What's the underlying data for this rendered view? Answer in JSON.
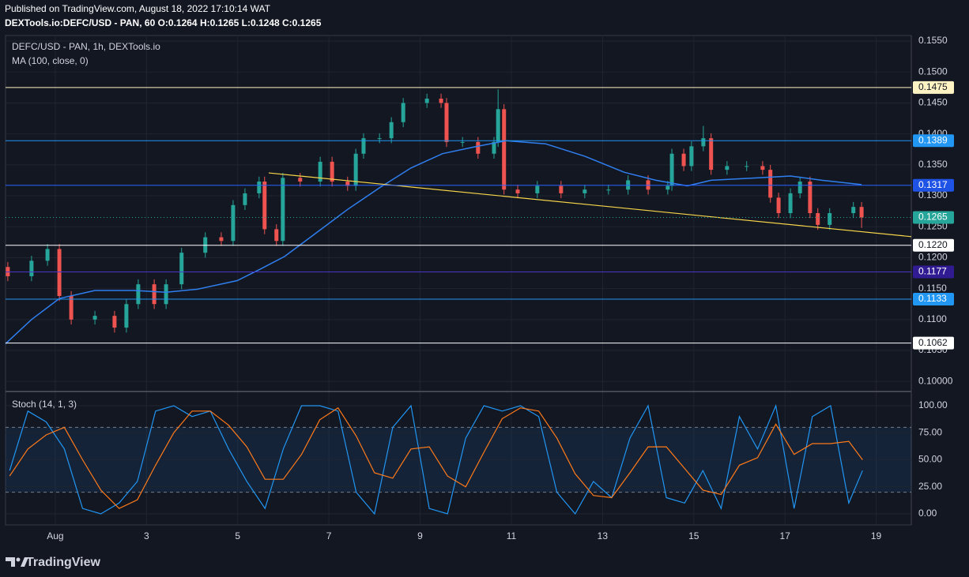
{
  "header": {
    "published": "Published on TradingView.com, August 18, 2022 17:10:14 WAT",
    "symbol": "DEXTools.io:DEFC/USD - PAN, 60 O:0.1264 H:0.1265 L:0.1248 C:0.1265"
  },
  "footer": {
    "brand": "TradingView"
  },
  "chart_data": [
    {
      "type": "candlestick",
      "title": "DEFC/USD - PAN, 1h, DEXTools.io",
      "up_color": "#26a69a",
      "down_color": "#ef5350",
      "grid": true,
      "xlim": [
        -0.09,
        19.77
      ],
      "ylim": [
        0.0985,
        0.1559
      ],
      "xticks": [
        {
          "value": 1,
          "label": "Aug"
        },
        3,
        5,
        7,
        9,
        11,
        13,
        15,
        17,
        19
      ],
      "yticks": [
        {
          "value": 0.155,
          "label": "0.1550"
        },
        {
          "value": 0.15,
          "label": "0.1500"
        },
        {
          "value": 0.145,
          "label": "0.1450"
        },
        {
          "value": 0.14,
          "label": "0.1400"
        },
        {
          "value": 0.135,
          "label": "0.1350"
        },
        {
          "value": 0.13,
          "label": "0.1300"
        },
        {
          "value": 0.125,
          "label": "0.1250"
        },
        {
          "value": 0.12,
          "label": "0.1200"
        },
        {
          "value": 0.115,
          "label": "0.1150"
        },
        {
          "value": 0.11,
          "label": "0.1100"
        },
        {
          "value": 0.105,
          "label": "0.1050"
        },
        {
          "value": 0.1,
          "label": "0.10000"
        }
      ],
      "x": [
        -0.04,
        0.48,
        0.83,
        1.09,
        1.35,
        1.87,
        2.3,
        2.56,
        2.82,
        3.17,
        3.43,
        3.77,
        4.29,
        4.64,
        4.9,
        5.16,
        5.47,
        5.59,
        5.85,
        5.99,
        6.37,
        6.81,
        7.07,
        7.41,
        7.59,
        7.76,
        8.11,
        8.37,
        8.63,
        9.15,
        9.46,
        9.58,
        9.93,
        10.27,
        10.62,
        10.71,
        10.84,
        11.14,
        11.57,
        12.09,
        12.61,
        13.13,
        13.56,
        14.0,
        14.43,
        14.52,
        14.78,
        14.95,
        15.21,
        15.38,
        15.73,
        16.16,
        16.51,
        16.68,
        16.86,
        17.12,
        17.33,
        17.55,
        17.72,
        17.98,
        18.5,
        18.68
      ],
      "open": [
        0.1185,
        0.117,
        0.1195,
        0.1214,
        0.1138,
        0.11,
        0.1106,
        0.1087,
        0.1125,
        0.1157,
        0.1125,
        0.1157,
        0.1208,
        0.1233,
        0.1227,
        0.1285,
        0.1304,
        0.1323,
        0.1246,
        0.1227,
        0.1329,
        0.1323,
        0.1355,
        0.1323,
        0.1316,
        0.1368,
        0.1393,
        0.1393,
        0.1419,
        0.145,
        0.1457,
        0.145,
        0.1387,
        0.1387,
        0.1368,
        0.1387,
        0.144,
        0.131,
        0.1304,
        0.1316,
        0.1304,
        0.131,
        0.131,
        0.1325,
        0.131,
        0.1316,
        0.1368,
        0.1348,
        0.138,
        0.1393,
        0.1342,
        0.1348,
        0.1348,
        0.1342,
        0.1297,
        0.1272,
        0.1304,
        0.1323,
        0.1272,
        0.1253,
        0.1272,
        0.1282
      ],
      "high": [
        0.1193,
        0.1203,
        0.1222,
        0.1222,
        0.1146,
        0.1114,
        0.1114,
        0.1133,
        0.1165,
        0.1165,
        0.1165,
        0.1216,
        0.1241,
        0.1241,
        0.1293,
        0.1312,
        0.1331,
        0.1331,
        0.1254,
        0.1337,
        0.1337,
        0.1363,
        0.1363,
        0.1331,
        0.1376,
        0.1401,
        0.1401,
        0.1427,
        0.1458,
        0.1465,
        0.1465,
        0.1458,
        0.1395,
        0.1395,
        0.1395,
        0.1472,
        0.1448,
        0.1318,
        0.1324,
        0.1324,
        0.1318,
        0.1318,
        0.1333,
        0.1333,
        0.1324,
        0.1376,
        0.1376,
        0.1388,
        0.1413,
        0.1401,
        0.1356,
        0.1356,
        0.1356,
        0.135,
        0.1305,
        0.1312,
        0.1331,
        0.1331,
        0.128,
        0.128,
        0.129,
        0.129
      ],
      "low": [
        0.1162,
        0.1162,
        0.1187,
        0.113,
        0.1092,
        0.1092,
        0.1079,
        0.1079,
        0.1117,
        0.1117,
        0.1117,
        0.1149,
        0.12,
        0.1219,
        0.1219,
        0.1277,
        0.1296,
        0.1238,
        0.1219,
        0.1219,
        0.1315,
        0.1315,
        0.1315,
        0.1308,
        0.1308,
        0.136,
        0.1385,
        0.1385,
        0.1411,
        0.1442,
        0.1442,
        0.1379,
        0.1379,
        0.136,
        0.136,
        0.1379,
        0.1302,
        0.1296,
        0.1296,
        0.1296,
        0.1296,
        0.1302,
        0.1302,
        0.1302,
        0.1302,
        0.1308,
        0.134,
        0.134,
        0.1372,
        0.1334,
        0.1334,
        0.134,
        0.1334,
        0.1289,
        0.1264,
        0.1264,
        0.1296,
        0.1264,
        0.1245,
        0.1245,
        0.1264,
        0.1248
      ],
      "close": [
        0.117,
        0.1195,
        0.1214,
        0.1138,
        0.11,
        0.1106,
        0.1087,
        0.1125,
        0.1157,
        0.1125,
        0.1157,
        0.1208,
        0.1233,
        0.1227,
        0.1285,
        0.1304,
        0.1323,
        0.1246,
        0.1227,
        0.1329,
        0.1323,
        0.1355,
        0.1323,
        0.1316,
        0.1368,
        0.1393,
        0.1393,
        0.1419,
        0.145,
        0.1457,
        0.145,
        0.1387,
        0.1387,
        0.1368,
        0.1387,
        0.144,
        0.131,
        0.1304,
        0.1316,
        0.1304,
        0.131,
        0.131,
        0.1325,
        0.131,
        0.1316,
        0.1368,
        0.1348,
        0.138,
        0.1393,
        0.1342,
        0.1348,
        0.1348,
        0.1342,
        0.1297,
        0.1272,
        0.1304,
        0.1323,
        0.1272,
        0.1253,
        0.1272,
        0.1282,
        0.1265
      ],
      "series": [
        {
          "name": "MA (100, close, 0)",
          "color": "#2f7ff0",
          "x": [
            -0.09,
            0.48,
            1.09,
            1.87,
            2.73,
            3.43,
            4.12,
            4.99,
            5.51,
            6.03,
            6.72,
            7.41,
            8.11,
            8.8,
            9.49,
            10.19,
            10.88,
            11.75,
            12.61,
            13.48,
            14.17,
            14.86,
            15.38,
            16.42,
            17.12,
            17.81,
            18.68
          ],
          "values": [
            0.1061,
            0.11,
            0.1134,
            0.1147,
            0.1147,
            0.1144,
            0.1149,
            0.1163,
            0.1182,
            0.1202,
            0.124,
            0.1278,
            0.1313,
            0.1345,
            0.1368,
            0.1379,
            0.1389,
            0.1384,
            0.1364,
            0.1338,
            0.1325,
            0.1316,
            0.1325,
            0.1329,
            0.1332,
            0.1325,
            0.1318
          ]
        }
      ],
      "trendline": {
        "x": [
          5.68,
          19.77
        ],
        "y": [
          0.1337,
          0.1234
        ],
        "color": "#f7d64a"
      },
      "levels": [
        {
          "value": 0.1475,
          "label": "0.1475",
          "color": "#fff3c4",
          "label_bg": "#fff3c4",
          "label_color": "#131722",
          "style": "solid"
        },
        {
          "value": 0.1389,
          "label": "0.1389",
          "color": "#2196f3",
          "label_bg": "#2196f3",
          "label_color": "#ffffff",
          "style": "solid"
        },
        {
          "value": 0.1317,
          "label": "0.1317",
          "color": "#2962ff",
          "label_bg": "#1e53e5",
          "label_color": "#ffffff",
          "style": "solid"
        },
        {
          "value": 0.1265,
          "label": "0.1265",
          "color": "#26a69a",
          "label_bg": "#26a69a",
          "label_color": "#ffffff",
          "style": "dotted"
        },
        {
          "value": 0.122,
          "label": "0.1220",
          "color": "#ffffff",
          "label_bg": "#ffffff",
          "label_color": "#131722",
          "style": "solid"
        },
        {
          "value": 0.1177,
          "label": "0.1177",
          "color": "#4a35c8",
          "label_bg": "#311b92",
          "label_color": "#ffffff",
          "style": "solid"
        },
        {
          "value": 0.1133,
          "label": "0.1133",
          "color": "#2196f3",
          "label_bg": "#2196f3",
          "label_color": "#ffffff",
          "style": "solid"
        },
        {
          "value": 0.1062,
          "label": "0.1062",
          "color": "#ffffff",
          "label_bg": "#ffffff",
          "label_color": "#131722",
          "style": "solid"
        }
      ]
    },
    {
      "type": "line",
      "title": "Stoch (14, 1, 3)",
      "grid": true,
      "xlim": [
        -0.09,
        19.77
      ],
      "ylim": [
        -10.2,
        112.4
      ],
      "yticks": [
        {
          "value": 100,
          "label": "100.00"
        },
        {
          "value": 75,
          "label": "75.00"
        },
        {
          "value": 50,
          "label": "50.00"
        },
        {
          "value": 25,
          "label": "25.00"
        },
        {
          "value": 0,
          "label": "0.00"
        }
      ],
      "band": [
        20,
        80
      ],
      "band_color": "#2196f3",
      "x": [
        0,
        0.4,
        0.8,
        1.2,
        1.6,
        2,
        2.4,
        2.8,
        3.2,
        3.6,
        4,
        4.4,
        4.8,
        5.2,
        5.6,
        6,
        6.4,
        6.8,
        7.2,
        7.6,
        8,
        8.4,
        8.8,
        9.2,
        9.6,
        10,
        10.4,
        10.8,
        11.2,
        11.6,
        12,
        12.4,
        12.8,
        13.2,
        13.6,
        14,
        14.4,
        14.8,
        15.2,
        15.6,
        16,
        16.4,
        16.8,
        17.2,
        17.6,
        18,
        18.4,
        18.7
      ],
      "series": [
        {
          "color": "#2196f3",
          "values": [
            40,
            95,
            85,
            60,
            5,
            0,
            10,
            30,
            95,
            100,
            90,
            95,
            60,
            30,
            5,
            60,
            100,
            100,
            95,
            20,
            0,
            80,
            100,
            5,
            0,
            70,
            100,
            95,
            100,
            90,
            20,
            0,
            30,
            15,
            70,
            100,
            15,
            10,
            40,
            5,
            90,
            60,
            100,
            5,
            90,
            100,
            10,
            40
          ]
        },
        {
          "color": "#ff7a1a",
          "values": [
            35,
            60,
            73,
            80,
            50,
            22,
            5,
            13,
            45,
            75,
            95,
            95,
            82,
            62,
            32,
            32,
            55,
            87,
            98,
            72,
            38,
            33,
            60,
            62,
            35,
            25,
            57,
            88,
            98,
            95,
            70,
            37,
            17,
            15,
            38,
            62,
            62,
            42,
            22,
            18,
            45,
            52,
            83,
            55,
            65,
            65,
            67,
            50
          ]
        }
      ]
    }
  ]
}
